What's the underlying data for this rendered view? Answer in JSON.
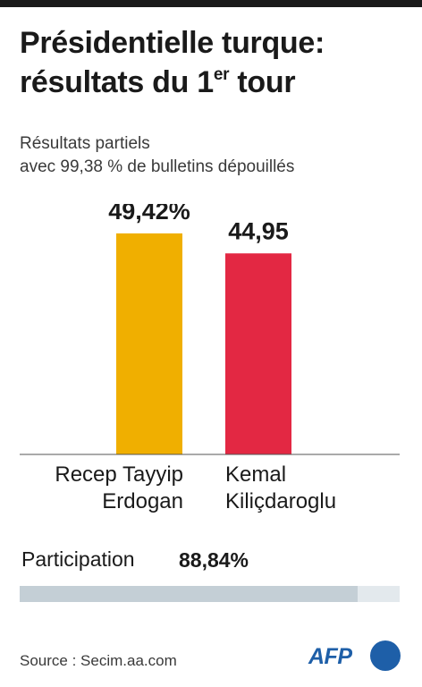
{
  "header": {
    "title_line1": "Présidentielle turque:",
    "title_line2_pre": "résultats du 1",
    "title_sup": "er",
    "title_line2_post": " tour",
    "subtitle_line1": "Résultats partiels",
    "subtitle_line2": "avec 99,38 % de bulletins dépouillés"
  },
  "chart_data": {
    "type": "bar",
    "categories": [
      "Recep Tayyip Erdogan",
      "Kemal Kiliçdaroglu"
    ],
    "category_lines": [
      [
        "Recep Tayyip",
        "Erdogan"
      ],
      [
        "Kemal",
        "Kiliçdaroglu"
      ]
    ],
    "values": [
      49.42,
      44.95
    ],
    "value_labels": [
      "49,42%",
      "44,95"
    ],
    "colors": [
      "#f0af00",
      "#e32843"
    ],
    "ylim": [
      0,
      50
    ],
    "grid": false
  },
  "participation": {
    "label": "Participation",
    "value_label": "88,84%",
    "value": 88.84,
    "fill_color": "#c4cfd6",
    "track_color": "#e3e9ed"
  },
  "footer": {
    "source": "Source : Secim.aa.com",
    "logo_text": "AFP",
    "logo_color": "#1e5fa8"
  }
}
